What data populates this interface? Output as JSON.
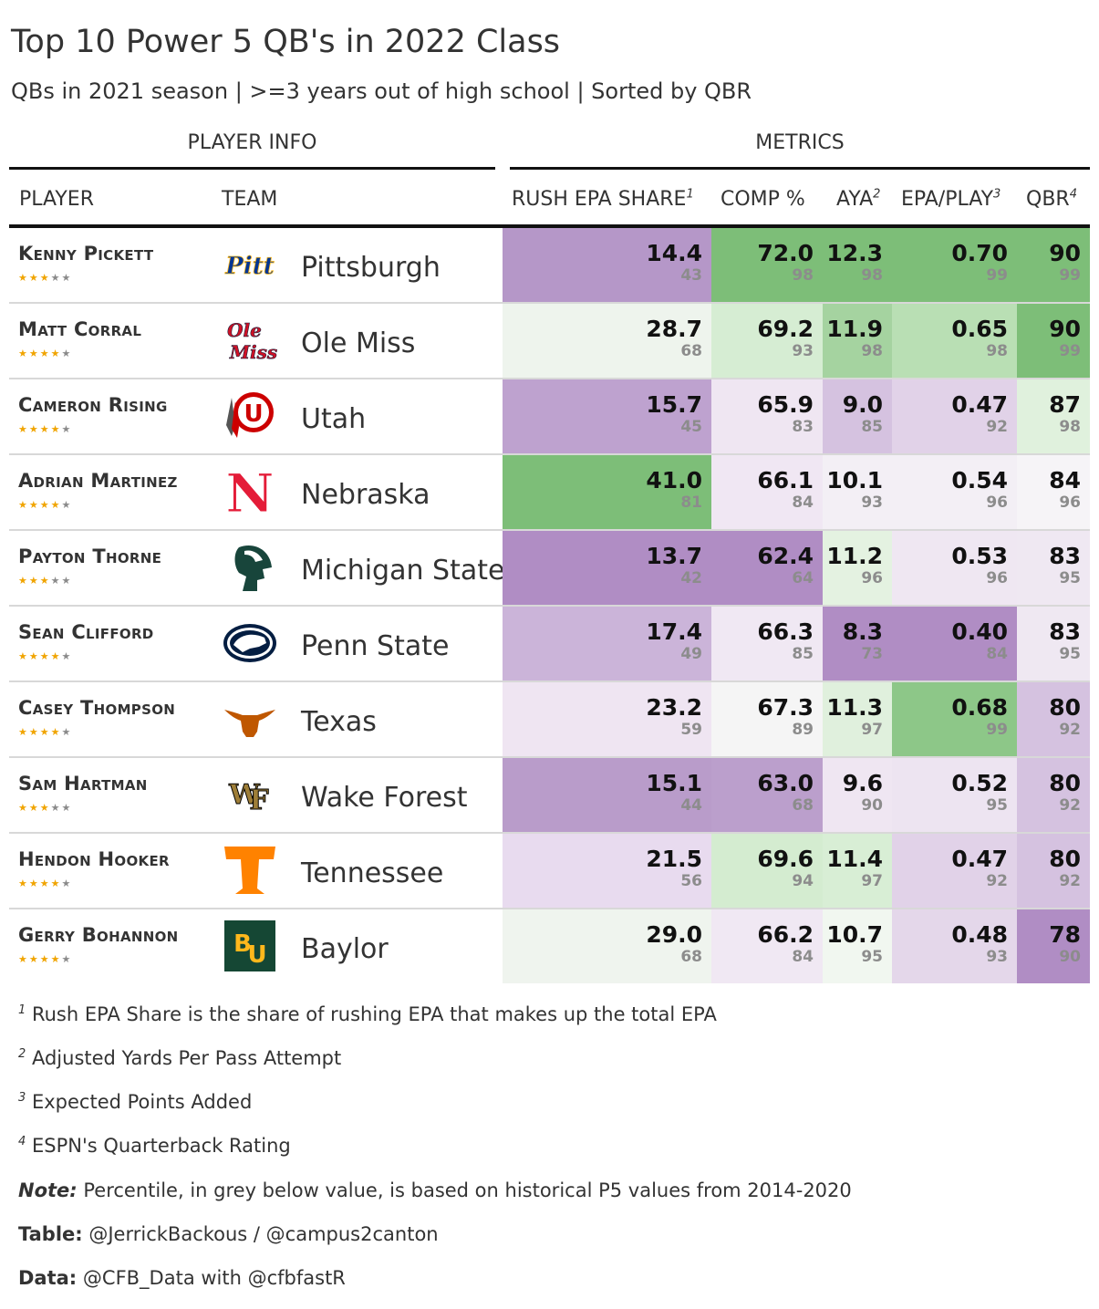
{
  "title": "Top 10 Power 5 QB's in 2022 Class",
  "subtitle": "QBs in 2021 season | >=3 years out of high school | Sorted by QBR",
  "spanners": {
    "info": "PLAYER INFO",
    "metrics": "METRICS"
  },
  "columns": {
    "player": "PLAYER",
    "team": "TEAM",
    "rush": "RUSH EPA SHARE",
    "rush_sup": "1",
    "comp": "COMP %",
    "aya": "AYA",
    "aya_sup": "2",
    "epa": "EPA/PLAY",
    "epa_sup": "3",
    "qbr": "QBR",
    "qbr_sup": "4"
  },
  "colors": {
    "star_on": "#f0a400",
    "star_off": "#8a8a8a"
  },
  "rows": [
    {
      "name": "Kenny Pickett",
      "team": "Pittsburgh",
      "stars": 3,
      "logo": "pitt-logo",
      "rush": "14.4",
      "rush_pct": "43",
      "rush_bg": "#b597c8",
      "comp": "72.0",
      "comp_pct": "98",
      "comp_bg": "#7dbe78",
      "aya": "12.3",
      "aya_pct": "98",
      "aya_bg": "#7dbe78",
      "epa": "0.70",
      "epa_pct": "99",
      "epa_bg": "#7dbe78",
      "qbr": "90",
      "qbr_pct": "99",
      "qbr_bg": "#7dbe78"
    },
    {
      "name": "Matt Corral",
      "team": "Ole Miss",
      "stars": 4,
      "logo": "ole-miss-logo",
      "rush": "28.7",
      "rush_pct": "68",
      "rush_bg": "#eef4ed",
      "comp": "69.2",
      "comp_pct": "93",
      "comp_bg": "#d6edd3",
      "aya": "11.9",
      "aya_pct": "98",
      "aya_bg": "#a5d3a0",
      "epa": "0.65",
      "epa_pct": "98",
      "epa_bg": "#b9dfb4",
      "qbr": "90",
      "qbr_pct": "99",
      "qbr_bg": "#7dbe78"
    },
    {
      "name": "Cameron Rising",
      "team": "Utah",
      "stars": 4,
      "logo": "utah-logo",
      "rush": "15.7",
      "rush_pct": "45",
      "rush_bg": "#bea2cf",
      "comp": "65.9",
      "comp_pct": "83",
      "comp_bg": "#efe6f2",
      "aya": "9.0",
      "aya_pct": "85",
      "aya_bg": "#d5c2e0",
      "epa": "0.47",
      "epa_pct": "92",
      "epa_bg": "#e1d2e8",
      "qbr": "87",
      "qbr_pct": "98",
      "qbr_bg": "#e0f1dd"
    },
    {
      "name": "Adrian Martinez",
      "team": "Nebraska",
      "stars": 4,
      "logo": "nebraska-logo",
      "rush": "41.0",
      "rush_pct": "81",
      "rush_bg": "#7dbe78",
      "comp": "66.1",
      "comp_pct": "84",
      "comp_bg": "#f0e7f3",
      "aya": "10.1",
      "aya_pct": "93",
      "aya_bg": "#f3eff5",
      "epa": "0.54",
      "epa_pct": "96",
      "epa_bg": "#f3eff5",
      "qbr": "84",
      "qbr_pct": "96",
      "qbr_bg": "#f6f4f7"
    },
    {
      "name": "Payton Thorne",
      "team": "Michigan State",
      "stars": 3,
      "logo": "michigan-state-logo",
      "rush": "13.7",
      "rush_pct": "42",
      "rush_bg": "#b08dc4",
      "comp": "62.4",
      "comp_pct": "64",
      "comp_bg": "#b08dc4",
      "aya": "11.2",
      "aya_pct": "96",
      "aya_bg": "#e4f2e1",
      "epa": "0.53",
      "epa_pct": "96",
      "epa_bg": "#efe7f2",
      "qbr": "83",
      "qbr_pct": "95",
      "qbr_bg": "#efe8f2"
    },
    {
      "name": "Sean Clifford",
      "team": "Penn State",
      "stars": 4,
      "logo": "penn-state-logo",
      "rush": "17.4",
      "rush_pct": "49",
      "rush_bg": "#cbb4d9",
      "comp": "66.3",
      "comp_pct": "85",
      "comp_bg": "#f0e8f3",
      "aya": "8.3",
      "aya_pct": "73",
      "aya_bg": "#b08dc4",
      "epa": "0.40",
      "epa_pct": "84",
      "epa_bg": "#b08dc4",
      "qbr": "83",
      "qbr_pct": "95",
      "qbr_bg": "#efe8f2"
    },
    {
      "name": "Casey Thompson",
      "team": "Texas",
      "stars": 4,
      "logo": "texas-logo",
      "rush": "23.2",
      "rush_pct": "59",
      "rush_bg": "#efe5f2",
      "comp": "67.3",
      "comp_pct": "89",
      "comp_bg": "#f5f5f5",
      "aya": "11.3",
      "aya_pct": "97",
      "aya_bg": "#e0f0dd",
      "epa": "0.68",
      "epa_pct": "99",
      "epa_bg": "#8dc788",
      "qbr": "80",
      "qbr_pct": "92",
      "qbr_bg": "#d5c2e0"
    },
    {
      "name": "Sam Hartman",
      "team": "Wake Forest",
      "stars": 3,
      "logo": "wake-forest-logo",
      "rush": "15.1",
      "rush_pct": "44",
      "rush_bg": "#b99cca",
      "comp": "63.0",
      "comp_pct": "68",
      "comp_bg": "#bb9fcc",
      "aya": "9.6",
      "aya_pct": "90",
      "aya_bg": "#efe6f2",
      "epa": "0.52",
      "epa_pct": "95",
      "epa_bg": "#ede4f1",
      "qbr": "80",
      "qbr_pct": "92",
      "qbr_bg": "#d5c2e0"
    },
    {
      "name": "Hendon Hooker",
      "team": "Tennessee",
      "stars": 4,
      "logo": "tennessee-logo",
      "rush": "21.5",
      "rush_pct": "56",
      "rush_bg": "#e8dbef",
      "comp": "69.6",
      "comp_pct": "94",
      "comp_bg": "#d4ecd0",
      "aya": "11.4",
      "aya_pct": "97",
      "aya_bg": "#d8eed5",
      "epa": "0.47",
      "epa_pct": "92",
      "epa_bg": "#e1d2e8",
      "qbr": "80",
      "qbr_pct": "92",
      "qbr_bg": "#d5c2e0"
    },
    {
      "name": "Gerry Bohannon",
      "team": "Baylor",
      "stars": 4,
      "logo": "baylor-logo",
      "rush": "29.0",
      "rush_pct": "68",
      "rush_bg": "#eff4ee",
      "comp": "66.2",
      "comp_pct": "84",
      "comp_bg": "#f0e8f3",
      "aya": "10.7",
      "aya_pct": "95",
      "aya_bg": "#f1f7f0",
      "epa": "0.48",
      "epa_pct": "93",
      "epa_bg": "#e4d7ea",
      "qbr": "78",
      "qbr_pct": "90",
      "qbr_bg": "#b08dc4"
    }
  ],
  "footnotes": [
    {
      "sup": "1",
      "text": "Rush EPA Share is the share of rushing EPA that makes up the total EPA"
    },
    {
      "sup": "2",
      "text": "Adjusted Yards Per Pass Attempt"
    },
    {
      "sup": "3",
      "text": "Expected Points Added"
    },
    {
      "sup": "4",
      "text": "ESPN's Quarterback Rating"
    }
  ],
  "notes": {
    "note_label": "Note:",
    "note_text": "Percentile, in grey below value, is based on historical P5 values from 2014-2020",
    "table_label": "Table:",
    "table_text": "@JerrickBackous / @campus2canton",
    "data_label": "Data:",
    "data_text": "@CFB_Data with @cfbfastR"
  }
}
